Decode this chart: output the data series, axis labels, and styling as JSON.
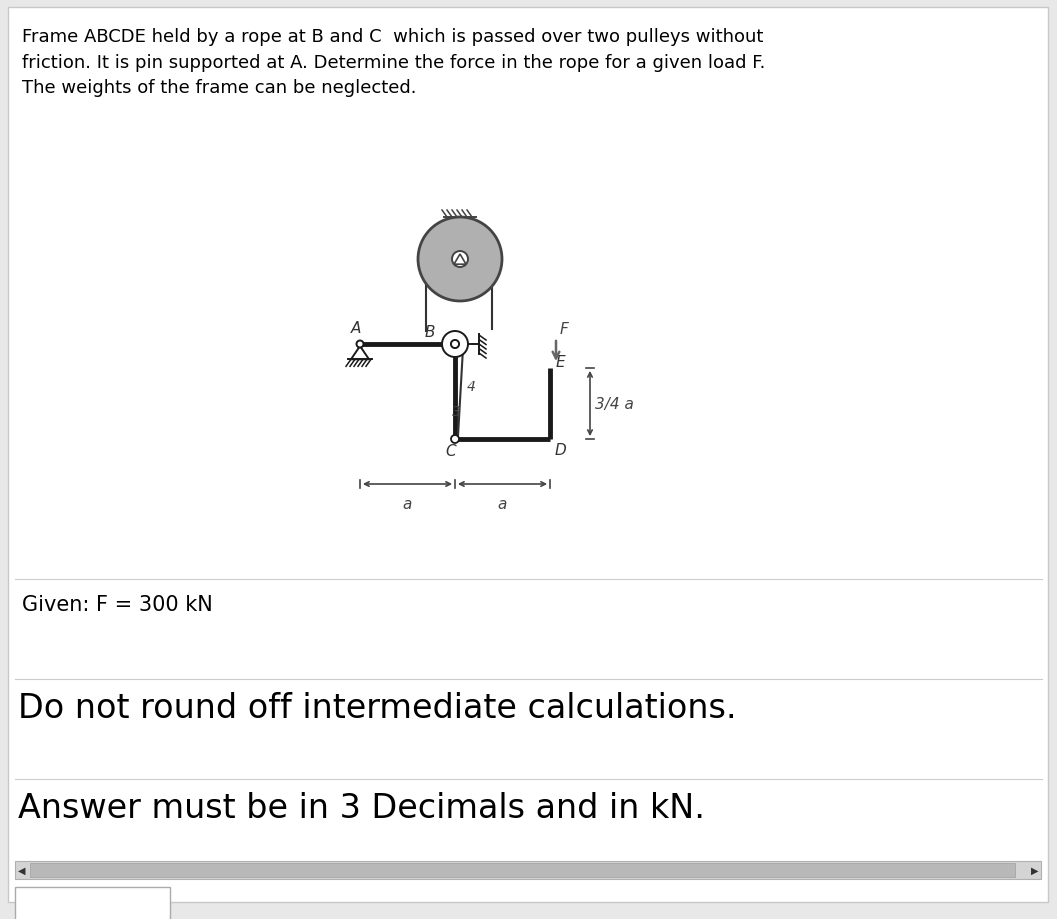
{
  "bg_color": "#e8e8e8",
  "inner_bg": "#ffffff",
  "title_text": "Frame ABCDE held by a rope at B and C  which is passed over two pulleys without\nfriction. It is pin supported at A. Determine the force in the rope for a given load F.\nThe weights of the frame can be neglected.",
  "given_text": "Given: F = 300 kN",
  "instruction1": "Do not round off intermediate calculations.",
  "instruction2": "Answer must be in 3 Decimals and in kN.",
  "frame_color": "#1a1a1a",
  "dim_color": "#555555",
  "pulley_large_color": "#b0b0b0",
  "pulley_small_color": "#c0c0c0",
  "rope_color": "#333333",
  "title_fontsize": 13.0,
  "given_fontsize": 15,
  "instr_fontsize": 24,
  "label_fontsize": 11
}
